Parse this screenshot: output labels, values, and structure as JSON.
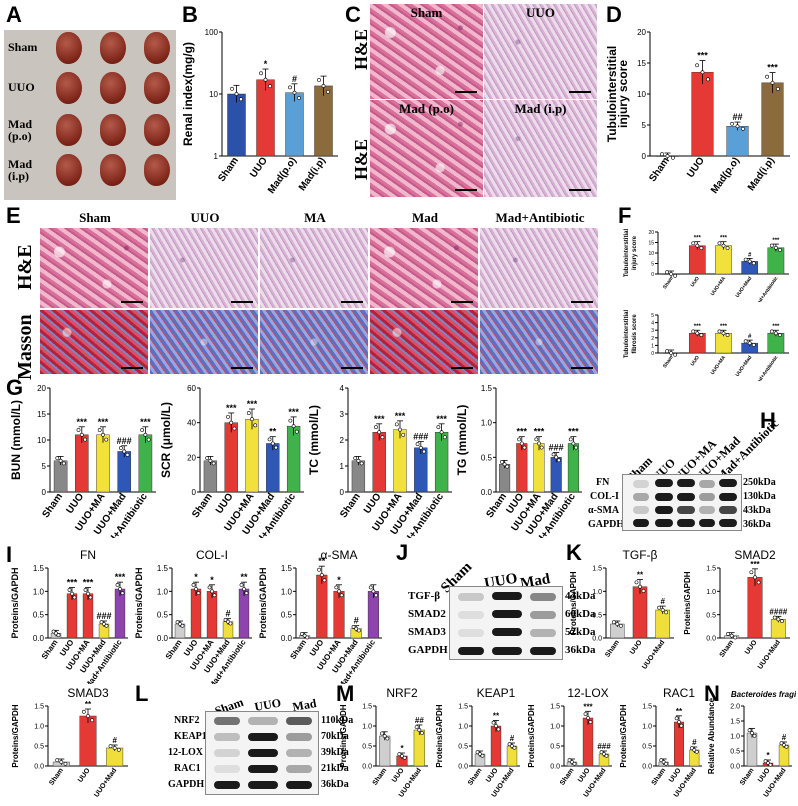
{
  "panel_labels": [
    "A",
    "B",
    "C",
    "D",
    "E",
    "F",
    "G",
    "H",
    "I",
    "J",
    "K",
    "L",
    "M",
    "N"
  ],
  "panelA": {
    "rows": [
      "Sham",
      "UUO",
      "Mad\n(p.o)",
      "Mad\n(i.p)"
    ]
  },
  "panelC": {
    "side_labels": [
      "H&E",
      "H&E"
    ],
    "titles": [
      "Sham",
      "UUO",
      "Mad (p.o)",
      "Mad (i.p)"
    ]
  },
  "panelE": {
    "columns": [
      "Sham",
      "UUO",
      "MA",
      "Mad",
      "Mad+Antibiotic"
    ],
    "rows": [
      "H&E",
      "Masson"
    ]
  },
  "panelH": {
    "lanes": [
      "Sham",
      "UUO",
      "UUO+MA",
      "UUO+Mad",
      "Mad+Antibiotic"
    ],
    "rows": [
      "FN",
      "COL-I",
      "α-SMA",
      "GAPDH"
    ],
    "kda": [
      "250kDa",
      "130kDa",
      "43kDa",
      "36kDa"
    ]
  },
  "panelJ": {
    "lanes": [
      "Sham",
      "UUO",
      "Mad"
    ],
    "rows": [
      "TGF-β",
      "SMAD2",
      "SMAD3",
      "GAPDH"
    ],
    "kda": [
      "44kDa",
      "60kDa",
      "52kDa",
      "36kDa"
    ]
  },
  "panelL": {
    "lanes": [
      "Sham",
      "UUO",
      "Mad"
    ],
    "rows": [
      "NRF2",
      "KEAP1",
      "12-LOX",
      "RAC1",
      "GAPDH"
    ],
    "kda": [
      "110kDa",
      "70kDa",
      "39kDa",
      "21kDa",
      "36kDa"
    ]
  },
  "colors": {
    "sham": "#2b52a8",
    "uuo": "#e53935",
    "madpo": "#5aa0d8",
    "madip": "#8b6a3c",
    "ma": "#f2e13a",
    "mad": "#2f57b8",
    "abx": "#3fb24a",
    "grey": "#cfcfcf",
    "purple": "#8e44ad",
    "yellow": "#f0df3a"
  },
  "chart_data": [
    {
      "id": "B",
      "type": "bar",
      "title": "",
      "ylabel": "Renal index(mg/g)",
      "yscale": "log",
      "yticks": [
        "1",
        "10",
        "100"
      ],
      "ylim": [
        1,
        100
      ],
      "categories": [
        "Sham",
        "UUO",
        "Mad(p.o)",
        "Mad(i.p)"
      ],
      "values": [
        10,
        17,
        10.5,
        13.5
      ],
      "annotations": [
        "",
        "*",
        "#",
        ""
      ]
    },
    {
      "id": "D",
      "type": "bar",
      "title": "",
      "ylabel": "Tubulointerstitial\ninjury score",
      "yticks": [
        "0",
        "5",
        "10",
        "15",
        "20"
      ],
      "ylim": [
        0,
        20
      ],
      "categories": [
        "Sham",
        "UUO",
        "Mad(p.o)",
        "Mad(i.p)"
      ],
      "values": [
        0,
        13.5,
        4.8,
        11.8
      ],
      "annotations": [
        "",
        "***",
        "##",
        "***"
      ]
    },
    {
      "id": "F1",
      "type": "bar",
      "title": "",
      "ylabel": "Tubulointerstitial\ninjury score",
      "yticks": [
        "0",
        "5",
        "10",
        "15",
        "20"
      ],
      "ylim": [
        0,
        20
      ],
      "categories": [
        "Sham",
        "UUO",
        "UUO+MA",
        "UUO+Mad",
        "Mad+Antibiotic"
      ],
      "values": [
        0,
        13.5,
        13.5,
        6,
        12.5
      ],
      "annotations": [
        "",
        "***",
        "***",
        "#",
        "***"
      ]
    },
    {
      "id": "F2",
      "type": "bar",
      "title": "",
      "ylabel": "Tubulointerstitial\nfibrosis score",
      "yticks": [
        "0",
        "1",
        "2",
        "3",
        "4",
        "5"
      ],
      "ylim": [
        0,
        5
      ],
      "categories": [
        "Sham",
        "UUO",
        "UUO+MA",
        "UUO+Mad",
        "Mad+Antibiotic"
      ],
      "values": [
        0,
        2.6,
        2.6,
        1.3,
        2.6
      ],
      "annotations": [
        "",
        "***",
        "***",
        "#",
        "***"
      ]
    },
    {
      "id": "G1",
      "type": "bar",
      "title": "",
      "ylabel": "BUN (mmol/L)",
      "yticks": [
        "0",
        "5",
        "10",
        "15",
        "20"
      ],
      "ylim": [
        0,
        20
      ],
      "categories": [
        "Sham",
        "UUO",
        "UUO+MA",
        "UUO+Mad",
        "Mad+Antibiotic"
      ],
      "values": [
        6,
        11,
        11,
        7.8,
        11
      ],
      "annotations": [
        "",
        "***",
        "***",
        "###",
        "***"
      ]
    },
    {
      "id": "G2",
      "type": "bar",
      "title": "",
      "ylabel": "SCR (μmol/L)",
      "yticks": [
        "0",
        "20",
        "40",
        "60"
      ],
      "ylim": [
        0,
        60
      ],
      "categories": [
        "Sham",
        "UUO",
        "UUO+MA",
        "UUO+Mad",
        "Mad+Antibiotic"
      ],
      "values": [
        18,
        40,
        42,
        28,
        38
      ],
      "annotations": [
        "",
        "***",
        "***",
        "**",
        "***"
      ]
    },
    {
      "id": "G3",
      "type": "bar",
      "title": "",
      "ylabel": "TC (mmol/L)",
      "yticks": [
        "0",
        "1",
        "2",
        "3",
        "4"
      ],
      "ylim": [
        0,
        4
      ],
      "categories": [
        "Sham",
        "UUO",
        "UUO+MA",
        "UUO+Mad",
        "Mad+Antibiotic"
      ],
      "values": [
        1.2,
        2.3,
        2.4,
        1.7,
        2.3
      ],
      "annotations": [
        "",
        "***",
        "***",
        "###",
        "***"
      ]
    },
    {
      "id": "G4",
      "type": "bar",
      "title": "",
      "ylabel": "TG (mmol/L)",
      "yticks": [
        "0.0",
        "0.5",
        "1.0",
        "1.5"
      ],
      "ylim": [
        0,
        1.5
      ],
      "categories": [
        "Sham",
        "UUO",
        "UUO+MA",
        "UUO+Mad",
        "Mad+Antibiotic"
      ],
      "values": [
        0.4,
        0.7,
        0.7,
        0.5,
        0.7
      ],
      "annotations": [
        "",
        "***",
        "***",
        "###",
        "***"
      ]
    },
    {
      "id": "I1",
      "type": "bar",
      "title": "FN",
      "ylabel": "Proteins/GAPDH",
      "yticks": [
        "0.0",
        "0.5",
        "1.0",
        "1.5"
      ],
      "ylim": [
        0,
        1.5
      ],
      "categories": [
        "Sham",
        "UUO",
        "UUO+MA",
        "UUO+Mad",
        "Mad+Antibiotic"
      ],
      "values": [
        0.1,
        0.95,
        0.95,
        0.3,
        1.05
      ],
      "annotations": [
        "",
        "***",
        "***",
        "###",
        "***"
      ]
    },
    {
      "id": "I2",
      "type": "bar",
      "title": "COL-I",
      "ylabel": "Proteins/GAPDH",
      "yticks": [
        "0.0",
        "0.5",
        "1.0",
        "1.5"
      ],
      "ylim": [
        0,
        1.5
      ],
      "categories": [
        "Sham",
        "UUO",
        "UUO+MA",
        "UUO+Mad",
        "Mad+Antibiotic"
      ],
      "values": [
        0.3,
        1.05,
        1.0,
        0.35,
        1.05
      ],
      "annotations": [
        "",
        "*",
        "*",
        "#",
        "**"
      ]
    },
    {
      "id": "I3",
      "type": "bar",
      "title": "α-SMA",
      "ylabel": "Proteins/GAPDH",
      "yticks": [
        "0.0",
        "0.5",
        "1.0",
        "1.5"
      ],
      "ylim": [
        0,
        1.5
      ],
      "categories": [
        "Sham",
        "UUO",
        "UUO+MA",
        "UUO+Mad",
        "Mad+Antibiotic"
      ],
      "values": [
        0.05,
        1.35,
        1.0,
        0.2,
        1.0
      ],
      "annotations": [
        "",
        "**",
        "*",
        "#",
        ""
      ]
    },
    {
      "id": "K1",
      "type": "bar",
      "title": "TGF-β",
      "ylabel": "Proteins/GAPDH",
      "yticks": [
        "0.0",
        "0.5",
        "1.0",
        "1.5"
      ],
      "ylim": [
        0,
        1.5
      ],
      "categories": [
        "Sham",
        "UUO",
        "UUO+Mad"
      ],
      "values": [
        0.3,
        1.1,
        0.6
      ],
      "annotations": [
        "",
        "**",
        "#"
      ]
    },
    {
      "id": "K2",
      "type": "bar",
      "title": "SMAD2",
      "ylabel": "Proteins/GAPDH",
      "yticks": [
        "0.0",
        "0.5",
        "1.0",
        "1.5"
      ],
      "ylim": [
        0,
        1.5
      ],
      "categories": [
        "Sham",
        "UUO",
        "UUO+Mad"
      ],
      "values": [
        0.05,
        1.3,
        0.4
      ],
      "annotations": [
        "",
        "***",
        "####"
      ]
    },
    {
      "id": "K3",
      "type": "bar",
      "title": "SMAD3",
      "ylabel": "Proteins/GAPDH",
      "yticks": [
        "0.0",
        "0.5",
        "1.0",
        "1.5"
      ],
      "ylim": [
        0,
        1.5
      ],
      "categories": [
        "Sham",
        "UUO",
        "UUO+Mad"
      ],
      "values": [
        0.1,
        1.25,
        0.45
      ],
      "annotations": [
        "",
        "**",
        "#"
      ]
    },
    {
      "id": "M1",
      "type": "bar",
      "title": "NRF2",
      "ylabel": "Proteins/GAPDH",
      "yticks": [
        "0.0",
        "0.5",
        "1.0",
        "1.5"
      ],
      "ylim": [
        0,
        1.5
      ],
      "categories": [
        "Sham",
        "UUO",
        "UUO+Mad"
      ],
      "values": [
        0.75,
        0.25,
        0.9
      ],
      "annotations": [
        "",
        "*",
        "##"
      ]
    },
    {
      "id": "M2",
      "type": "bar",
      "title": "KEAP1",
      "ylabel": "Proteins/GAPDH",
      "yticks": [
        "0.0",
        "0.5",
        "1.0",
        "1.5"
      ],
      "ylim": [
        0,
        1.5
      ],
      "categories": [
        "Sham",
        "UUO",
        "UUO+Mad"
      ],
      "values": [
        0.3,
        1.0,
        0.5
      ],
      "annotations": [
        "",
        "**",
        "#"
      ]
    },
    {
      "id": "M3",
      "type": "bar",
      "title": "12-LOX",
      "ylabel": "Proteins/GAPDH",
      "yticks": [
        "0.0",
        "0.5",
        "1.0",
        "1.5"
      ],
      "ylim": [
        0,
        1.5
      ],
      "categories": [
        "Sham",
        "UUO",
        "UUO+Mad"
      ],
      "values": [
        0.1,
        1.2,
        0.3
      ],
      "annotations": [
        "",
        "***",
        "###"
      ]
    },
    {
      "id": "M4",
      "type": "bar",
      "title": "RAC1",
      "ylabel": "Proteins/GAPDH",
      "yticks": [
        "0.0",
        "0.5",
        "1.0",
        "1.5"
      ],
      "ylim": [
        0,
        1.5
      ],
      "categories": [
        "Sham",
        "UUO",
        "UUO+Mad"
      ],
      "values": [
        0.1,
        1.1,
        0.4
      ],
      "annotations": [
        "",
        "**",
        "#"
      ]
    },
    {
      "id": "N",
      "type": "bar",
      "title": "Bacteroides fragilis",
      "ylabel": "Relative Abundance",
      "yticks": [
        "0.0",
        "0.5",
        "1.0",
        "1.5",
        "2.0"
      ],
      "ylim": [
        0,
        2
      ],
      "categories": [
        "Sham",
        "UUO",
        "UUO+Mad"
      ],
      "values": [
        1.1,
        0.1,
        0.7
      ],
      "annotations": [
        "",
        "*",
        "#"
      ]
    }
  ]
}
